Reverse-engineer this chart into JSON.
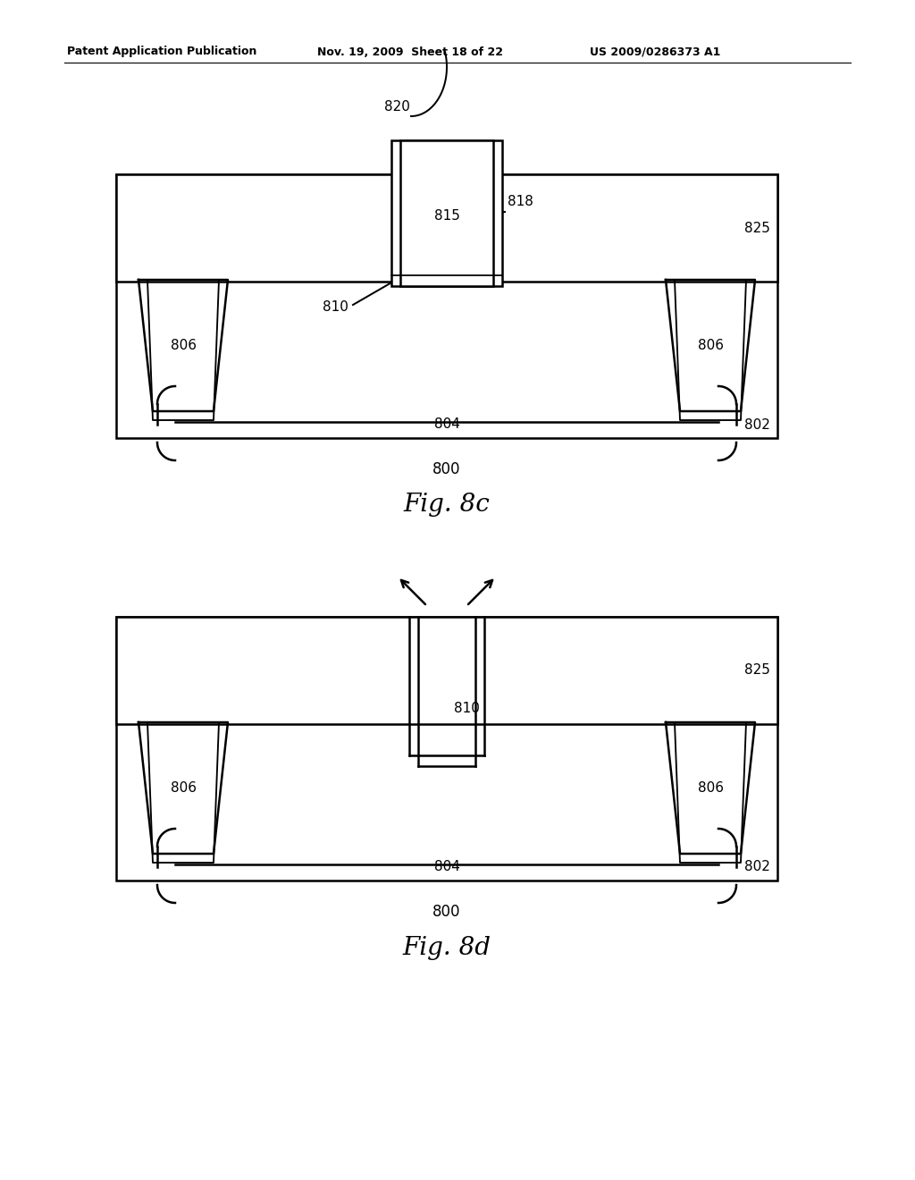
{
  "bg_color": "#ffffff",
  "line_color": "#000000",
  "header_left": "Patent Application Publication",
  "header_mid": "Nov. 19, 2009  Sheet 18 of 22",
  "header_right": "US 2009/0286373 A1",
  "fig8c_caption": "800",
  "fig8c_title": "Fig. 8c",
  "fig8d_caption": "800",
  "fig8d_title": "Fig. 8d"
}
